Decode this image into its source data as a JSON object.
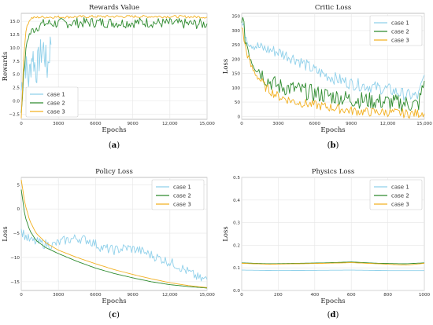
{
  "colors": {
    "case1": "#8fd0ea",
    "case2": "#2e8b2e",
    "case3": "#f2b020"
  },
  "chart_data": [
    {
      "id": "rewards",
      "type": "line",
      "title": "Rewards Value",
      "xlabel": "Epochs",
      "ylabel": "Rewards",
      "caption": "(a)",
      "caption_letter": "a",
      "xlim": [
        0,
        15000
      ],
      "ylim": [
        -3.5,
        16.5
      ],
      "xticks": [
        0,
        3000,
        6000,
        9000,
        12000,
        15000
      ],
      "xtick_labels": [
        "0",
        "3000",
        "6000",
        "9000",
        "12,000",
        "15,000"
      ],
      "yticks": [
        -2.5,
        0.0,
        2.5,
        5.0,
        7.5,
        10.0,
        12.5,
        15.0
      ],
      "ytick_labels": [
        "−2.5",
        "0.0",
        "2.5",
        "5.0",
        "7.5",
        "10.0",
        "12.5",
        "15.0"
      ],
      "legend": "bottom-left",
      "series": [
        {
          "name": "case 1",
          "color_key": "case1",
          "style": "noisy",
          "x": [
            0,
            300,
            600,
            900,
            1200,
            1500,
            1800,
            2100,
            2400
          ],
          "y": [
            2.0,
            7.5,
            4.0,
            9.0,
            5.5,
            8.5,
            10.0,
            6.0,
            11.5
          ],
          "amp": 3.0
        },
        {
          "name": "case 2",
          "color_key": "case2",
          "style": "noisy",
          "x": [
            0,
            200,
            500,
            1000,
            1500,
            2000,
            3000,
            4000,
            6000,
            8000,
            10000,
            12000,
            14000,
            15000
          ],
          "y": [
            -2.0,
            5.0,
            12.0,
            13.5,
            14.3,
            14.6,
            14.6,
            14.7,
            14.8,
            14.7,
            14.8,
            14.6,
            14.5,
            14.5
          ],
          "amp": 1.0
        },
        {
          "name": "case 3",
          "color_key": "case3",
          "style": "noisy",
          "x": [
            0,
            200,
            400,
            800,
            1500,
            3000,
            6000,
            9000,
            12000,
            15000
          ],
          "y": [
            -3.2,
            8.0,
            14.0,
            15.6,
            15.8,
            15.8,
            15.9,
            15.9,
            15.9,
            15.8
          ],
          "amp": 0.25
        }
      ]
    },
    {
      "id": "critic",
      "type": "line",
      "title": "Critic Loss",
      "xlabel": "Epochs",
      "ylabel": "Loss",
      "caption": "(b)",
      "caption_letter": "b",
      "xlim": [
        0,
        15000
      ],
      "ylim": [
        -10,
        360
      ],
      "xticks": [
        0,
        3000,
        6000,
        9000,
        12000,
        15000
      ],
      "xtick_labels": [
        "0",
        "3000",
        "6000",
        "9000",
        "12,000",
        "15,000"
      ],
      "yticks": [
        0,
        50,
        100,
        150,
        200,
        250,
        300,
        350
      ],
      "ytick_labels": [
        "0",
        "50",
        "100",
        "150",
        "200",
        "250",
        "300",
        "350"
      ],
      "legend": "top-right",
      "series": [
        {
          "name": "case 1",
          "color_key": "case1",
          "style": "noisy",
          "x": [
            0,
            300,
            600,
            1500,
            3000,
            4500,
            6000,
            7500,
            9000,
            10500,
            12000,
            13500,
            14500,
            15000
          ],
          "y": [
            330,
            290,
            260,
            240,
            225,
            200,
            160,
            135,
            115,
            105,
            95,
            75,
            70,
            140
          ],
          "amp": 22
        },
        {
          "name": "case 2",
          "color_key": "case2",
          "style": "noisy",
          "x": [
            0,
            300,
            800,
            2000,
            3000,
            4500,
            6000,
            7500,
            9000,
            10500,
            12000,
            13500,
            14500,
            15000
          ],
          "y": [
            355,
            270,
            200,
            130,
            105,
            95,
            80,
            70,
            60,
            55,
            50,
            45,
            40,
            120
          ],
          "amp": 30
        },
        {
          "name": "case 3",
          "color_key": "case3",
          "style": "noisy",
          "x": [
            0,
            300,
            800,
            2000,
            3000,
            4500,
            6000,
            7500,
            9000,
            10500,
            12000,
            13500,
            14500,
            15000
          ],
          "y": [
            320,
            240,
            170,
            100,
            70,
            50,
            40,
            30,
            20,
            15,
            15,
            10,
            10,
            15
          ],
          "amp": 16
        }
      ]
    },
    {
      "id": "policy",
      "type": "line",
      "title": "Policy Loss",
      "xlabel": "Epochs",
      "ylabel": "Loss",
      "caption": "(c)",
      "caption_letter": "c",
      "xlim": [
        0,
        15000
      ],
      "ylim": [
        -16.8,
        6.5
      ],
      "xticks": [
        0,
        3000,
        6000,
        9000,
        12000,
        15000
      ],
      "xtick_labels": [
        "0",
        "3000",
        "6000",
        "9000",
        "12,000",
        "15,000"
      ],
      "yticks": [
        -15,
        -10,
        -5,
        0,
        5
      ],
      "ytick_labels": [
        "−15",
        "−10",
        "−5",
        "0",
        "5"
      ],
      "legend": "top-right",
      "series": [
        {
          "name": "case 1",
          "color_key": "case1",
          "style": "noisy",
          "x": [
            0,
            300,
            700,
            1500,
            2500,
            3500,
            4500,
            5500,
            6500,
            7500,
            8500,
            9500,
            10500,
            11500,
            12500,
            13500,
            14500,
            15000
          ],
          "y": [
            -4.5,
            -5.5,
            -6.5,
            -7.0,
            -7.5,
            -6.5,
            -6.0,
            -6.5,
            -8.0,
            -8.5,
            -8.0,
            -8.5,
            -9.5,
            -10.5,
            -11.5,
            -13.0,
            -14.5,
            -14.5
          ],
          "amp": 1.0
        },
        {
          "name": "case 2",
          "color_key": "case2",
          "style": "smooth",
          "x": [
            0,
            300,
            700,
            1200,
            2000,
            3000,
            4500,
            6000,
            7500,
            9000,
            10500,
            12000,
            13500,
            15000
          ],
          "y": [
            4.0,
            -1.5,
            -4.5,
            -6.5,
            -8.0,
            -9.2,
            -10.8,
            -12.2,
            -13.3,
            -14.2,
            -15.0,
            -15.6,
            -16.0,
            -16.3
          ],
          "amp": 0
        },
        {
          "name": "case 3",
          "color_key": "case3",
          "style": "smooth",
          "x": [
            0,
            300,
            700,
            1200,
            2000,
            3000,
            4500,
            6000,
            7500,
            9000,
            10500,
            12000,
            13500,
            15000
          ],
          "y": [
            6.0,
            1.0,
            -2.5,
            -5.0,
            -7.0,
            -8.5,
            -10.0,
            -11.3,
            -12.5,
            -13.5,
            -14.4,
            -15.2,
            -15.8,
            -16.2
          ],
          "amp": 0
        }
      ]
    },
    {
      "id": "physics",
      "type": "line",
      "title": "Physics Loss",
      "xlabel": "Epochs",
      "ylabel": "Loss",
      "caption": "(d)",
      "caption_letter": "d",
      "xlim": [
        0,
        1000
      ],
      "ylim": [
        0,
        0.5
      ],
      "xticks": [
        0,
        200,
        400,
        600,
        800,
        1000
      ],
      "xtick_labels": [
        "0",
        "200",
        "400",
        "600",
        "800",
        "1000"
      ],
      "yticks": [
        0.0,
        0.1,
        0.2,
        0.3,
        0.4,
        0.5
      ],
      "ytick_labels": [
        "0.0",
        "0.1",
        "0.2",
        "0.3",
        "0.4",
        "0.5"
      ],
      "legend": "top-right",
      "series": [
        {
          "name": "case 1",
          "color_key": "case1",
          "style": "smooth",
          "x": [
            0,
            200,
            400,
            600,
            800,
            1000
          ],
          "y": [
            0.09,
            0.088,
            0.089,
            0.09,
            0.088,
            0.088
          ],
          "amp": 0
        },
        {
          "name": "case 2",
          "color_key": "case2",
          "style": "smooth",
          "x": [
            0,
            150,
            300,
            450,
            600,
            750,
            900,
            1000
          ],
          "y": [
            0.122,
            0.118,
            0.12,
            0.122,
            0.126,
            0.12,
            0.118,
            0.122
          ],
          "amp": 0
        },
        {
          "name": "case 3",
          "color_key": "case3",
          "style": "smooth",
          "x": [
            0,
            150,
            300,
            450,
            600,
            750,
            900,
            1000
          ],
          "y": [
            0.12,
            0.116,
            0.118,
            0.12,
            0.123,
            0.118,
            0.112,
            0.12
          ],
          "amp": 0
        }
      ]
    }
  ]
}
